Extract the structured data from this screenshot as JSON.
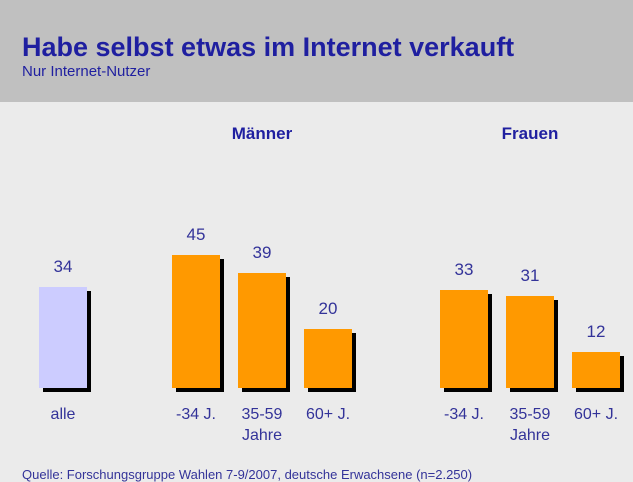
{
  "chart_data": {
    "type": "bar",
    "title": "Habe selbst etwas im Internet verkauft",
    "subtitle": "Nur Internet-Nutzer",
    "groups": [
      "Männer",
      "Frauen"
    ],
    "categories": [
      "alle",
      "-34 J.",
      "35-59 Jahre",
      "60+ J.",
      "-34 J.",
      "35-59 Jahre",
      "60+ J."
    ],
    "values": [
      34,
      45,
      39,
      20,
      33,
      31,
      12
    ],
    "colors": [
      "#ccccff",
      "#ff9900",
      "#ff9900",
      "#ff9900",
      "#ff9900",
      "#ff9900",
      "#ff9900"
    ],
    "source": "Quelle: Forschungsgruppe Wahlen 7-9/2007, deutsche Erwachsene (n=2.250)"
  }
}
